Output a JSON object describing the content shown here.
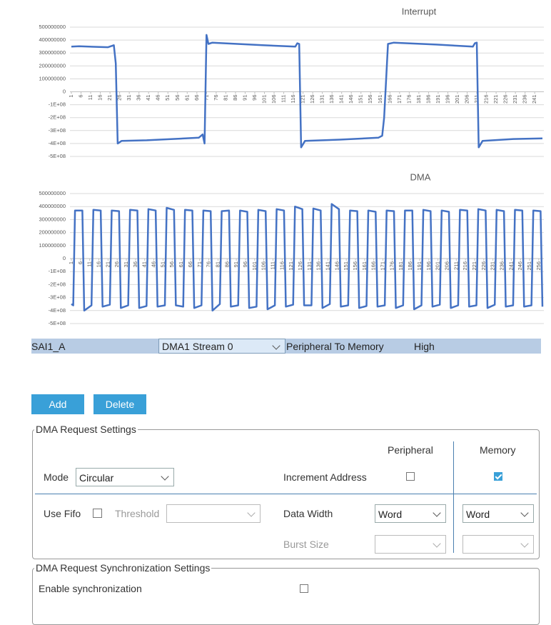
{
  "chart_data": [
    {
      "type": "line",
      "title": "Interrupt",
      "x": [
        1,
        5,
        20,
        23,
        24,
        25,
        27,
        40,
        67,
        69,
        70,
        71,
        72,
        74,
        100,
        117,
        118,
        119,
        120,
        122,
        140,
        160,
        162,
        163,
        165,
        168,
        190,
        209,
        210,
        211,
        212,
        214,
        230,
        245
      ],
      "series": [
        {
          "color": "#4472c4",
          "values": [
            350000000,
            352000000,
            345000000,
            360000000,
            220000000,
            -400000000,
            -380000000,
            -375000000,
            -355000000,
            -330000000,
            -400000000,
            440000000,
            370000000,
            380000000,
            360000000,
            350000000,
            375000000,
            370000000,
            -430000000,
            -380000000,
            -370000000,
            -355000000,
            -340000000,
            -200000000,
            370000000,
            380000000,
            365000000,
            350000000,
            375000000,
            380000000,
            -430000000,
            -380000000,
            -365000000,
            -360000000
          ]
        }
      ],
      "xlim": [
        1,
        245
      ],
      "xticks": [
        1,
        6,
        11,
        16,
        21,
        26,
        31,
        36,
        41,
        46,
        51,
        56,
        61,
        66,
        71,
        76,
        81,
        86,
        91,
        96,
        101,
        106,
        111,
        116,
        121,
        126,
        131,
        136,
        141,
        146,
        151,
        156,
        161,
        166,
        171,
        176,
        181,
        186,
        191,
        196,
        201,
        206,
        211,
        216,
        221,
        226,
        231,
        236,
        241
      ],
      "ylim": [
        -500000000,
        500000000
      ],
      "yticks": [
        500000000,
        400000000,
        300000000,
        200000000,
        100000000,
        0,
        {
          "value": -100000000,
          "label": "-1E+08"
        },
        {
          "value": -200000000,
          "label": "-2E+08"
        },
        {
          "value": -300000000,
          "label": "-3E+08"
        },
        {
          "value": -400000000,
          "label": "-4E+08"
        },
        {
          "value": -500000000,
          "label": "-5E+08"
        }
      ],
      "grid": true
    },
    {
      "type": "line",
      "title": "DMA",
      "x": [
        1,
        2,
        3,
        7,
        8,
        12,
        13,
        17,
        18,
        22,
        23,
        27,
        28,
        32,
        33,
        37,
        38,
        42,
        43,
        47,
        48,
        52,
        53,
        57,
        58,
        62,
        63,
        67,
        68,
        72,
        73,
        77,
        78,
        82,
        83,
        87,
        88,
        92,
        93,
        97,
        98,
        102,
        103,
        107,
        108,
        112,
        113,
        117,
        118,
        122,
        123,
        127,
        128,
        132,
        133,
        137,
        138,
        142,
        143,
        147,
        148,
        152,
        153,
        157,
        158,
        162,
        163,
        167,
        168,
        172,
        173,
        177,
        178,
        182,
        183,
        187,
        188,
        192,
        193,
        197,
        198,
        202,
        203,
        207,
        208,
        212,
        213,
        217,
        218,
        222,
        223,
        227,
        228,
        232,
        233,
        237,
        238,
        242,
        243,
        247,
        248,
        252,
        253,
        257,
        258
      ],
      "series": [
        {
          "color": "#4472c4",
          "values": [
            -350000000,
            -360000000,
            370000000,
            370000000,
            -400000000,
            -360000000,
            375000000,
            370000000,
            -370000000,
            -355000000,
            370000000,
            365000000,
            -380000000,
            -360000000,
            375000000,
            370000000,
            -380000000,
            -365000000,
            380000000,
            370000000,
            -370000000,
            -360000000,
            390000000,
            375000000,
            -360000000,
            -370000000,
            375000000,
            370000000,
            -380000000,
            -360000000,
            370000000,
            365000000,
            -400000000,
            -350000000,
            365000000,
            370000000,
            -370000000,
            -360000000,
            370000000,
            360000000,
            -380000000,
            -370000000,
            375000000,
            365000000,
            -390000000,
            -360000000,
            380000000,
            370000000,
            -370000000,
            -355000000,
            400000000,
            380000000,
            -360000000,
            -360000000,
            385000000,
            370000000,
            -380000000,
            -350000000,
            420000000,
            380000000,
            -370000000,
            -360000000,
            370000000,
            365000000,
            -380000000,
            -365000000,
            370000000,
            360000000,
            -370000000,
            -360000000,
            370000000,
            365000000,
            -380000000,
            -360000000,
            370000000,
            370000000,
            -390000000,
            -360000000,
            375000000,
            365000000,
            -370000000,
            -355000000,
            370000000,
            360000000,
            -380000000,
            -360000000,
            375000000,
            370000000,
            -370000000,
            -360000000,
            380000000,
            370000000,
            -380000000,
            -355000000,
            375000000,
            365000000,
            -370000000,
            -360000000,
            375000000,
            370000000,
            -370000000,
            -360000000,
            370000000,
            365000000,
            -370000000
          ]
        }
      ],
      "xlim": [
        1,
        258
      ],
      "xticks": [
        1,
        6,
        11,
        16,
        21,
        26,
        31,
        36,
        41,
        46,
        51,
        56,
        61,
        66,
        71,
        76,
        81,
        86,
        91,
        96,
        101,
        106,
        111,
        116,
        121,
        126,
        131,
        136,
        141,
        146,
        151,
        156,
        161,
        166,
        171,
        176,
        181,
        186,
        191,
        196,
        201,
        206,
        211,
        216,
        221,
        226,
        231,
        236,
        241,
        246,
        251,
        256
      ],
      "ylim": [
        -500000000,
        500000000
      ],
      "yticks": [
        500000000,
        400000000,
        300000000,
        200000000,
        100000000,
        0,
        {
          "value": -100000000,
          "label": "-1E+08"
        },
        {
          "value": -200000000,
          "label": "-2E+08"
        },
        {
          "value": -300000000,
          "label": "-3E+08"
        },
        {
          "value": -400000000,
          "label": "-4E+08"
        },
        {
          "value": -500000000,
          "label": "-5E+08"
        }
      ],
      "grid": true
    }
  ],
  "dma_row": {
    "request": "SAI1_A",
    "stream": "DMA1 Stream 0",
    "direction": "Peripheral To Memory",
    "priority": "High"
  },
  "buttons": {
    "add": "Add",
    "delete": "Delete"
  },
  "request_settings": {
    "legend": "DMA Request Settings",
    "peripheral": "Peripheral",
    "memory": "Memory",
    "mode_label": "Mode",
    "mode": "Circular",
    "increment_label": "Increment Address",
    "increment": [
      false,
      true
    ],
    "fifo_label": "Use Fifo",
    "fifo": false,
    "threshold_label": "Threshold",
    "data_width_label": "Data Width",
    "data_width": [
      "Word",
      "Word"
    ],
    "burst_label": "Burst Size"
  },
  "sync_settings": {
    "legend": "DMA Request Synchronization Settings",
    "enable_label": "Enable synchronization",
    "enable": false
  }
}
